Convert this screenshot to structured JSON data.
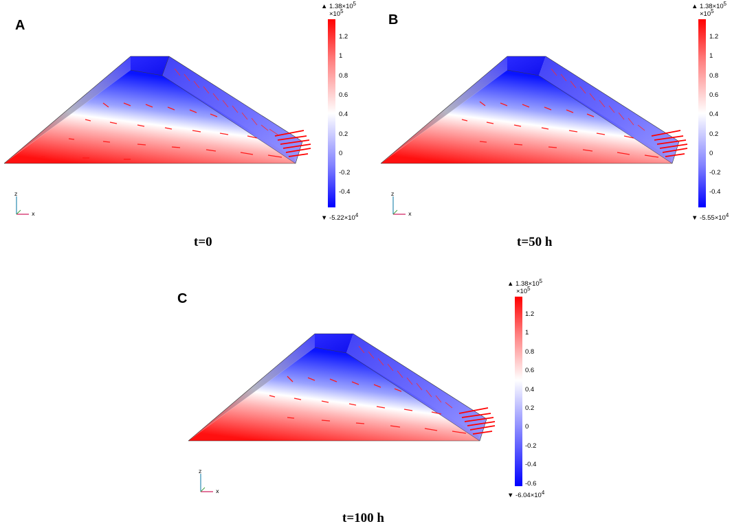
{
  "panels": [
    {
      "letter": "A",
      "caption": "t=0",
      "colorbar": {
        "max_label": "▲ 1.38×10",
        "max_exp": "5",
        "multiplier": "×10",
        "multiplier_exp": "5",
        "ticks": [
          "1.2",
          "1",
          "0.8",
          "0.6",
          "0.4",
          "0.2",
          "0",
          "-0.2",
          "-0.4"
        ],
        "min_label": "▼ -5.22×10",
        "min_exp": "4"
      }
    },
    {
      "letter": "B",
      "caption": "t=50  h",
      "colorbar": {
        "max_label": "▲ 1.38×10",
        "max_exp": "5",
        "multiplier": "×10",
        "multiplier_exp": "5",
        "ticks": [
          "1.2",
          "1",
          "0.8",
          "0.6",
          "0.4",
          "0.2",
          "0",
          "-0.2",
          "-0.4"
        ],
        "min_label": "▼ -5.55×10",
        "min_exp": "4"
      }
    },
    {
      "letter": "C",
      "caption": "t=100  h",
      "colorbar": {
        "max_label": "▲ 1.38×10",
        "max_exp": "5",
        "multiplier": "×10",
        "multiplier_exp": "5",
        "ticks": [
          "1.2",
          "1",
          "0.8",
          "0.6",
          "0.4",
          "0.2",
          "0",
          "-0.2",
          "-0.4",
          "-0.6"
        ],
        "min_label": "▼ -6.04×10",
        "min_exp": "4"
      }
    }
  ],
  "axes": {
    "z": "z",
    "x": "x"
  },
  "colors": {
    "high": "#ff0000",
    "mid": "#ffffff",
    "low": "#0000ff",
    "arrow": "#ff1a1a"
  }
}
